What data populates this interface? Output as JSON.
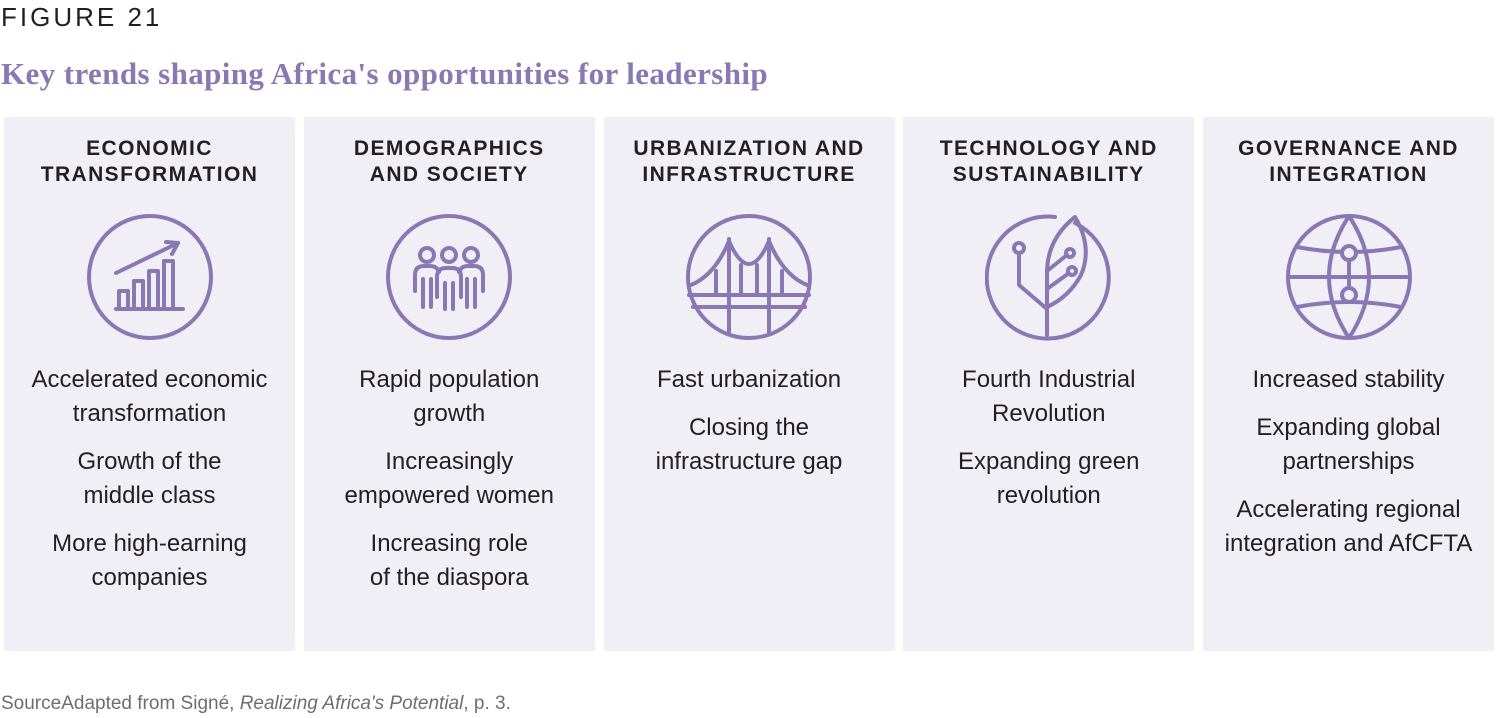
{
  "figure_label": "FIGURE 21",
  "title": "Key trends shaping Africa's opportunities for leadership",
  "accent_color": "#8a78b4",
  "panel_color": "#f0eff5",
  "columns": [
    {
      "heading": [
        "ECONOMIC",
        "TRANSFORMATION"
      ],
      "icon": "growth-chart-icon",
      "items": [
        [
          "Accelerated economic",
          "transformation"
        ],
        [
          "Growth of the",
          "middle class"
        ],
        [
          "More high-earning",
          "companies"
        ]
      ]
    },
    {
      "heading": [
        "DEMOGRAPHICS",
        "AND SOCIETY"
      ],
      "icon": "people-group-icon",
      "items": [
        [
          "Rapid population",
          "growth"
        ],
        [
          "Increasingly",
          "empowered women"
        ],
        [
          "Increasing role",
          "of the diaspora"
        ]
      ]
    },
    {
      "heading": [
        "URBANIZATION AND",
        "INFRASTRUCTURE"
      ],
      "icon": "bridge-icon",
      "items": [
        [
          "Fast urbanization"
        ],
        [
          "Closing the",
          "infrastructure gap"
        ]
      ]
    },
    {
      "heading": [
        "TECHNOLOGY AND",
        "SUSTAINABILITY"
      ],
      "icon": "circuit-leaf-icon",
      "items": [
        [
          "Fourth Industrial",
          "Revolution"
        ],
        [
          "Expanding green",
          "revolution"
        ]
      ]
    },
    {
      "heading": [
        "GOVERNANCE AND",
        "INTEGRATION"
      ],
      "icon": "network-globe-icon",
      "items": [
        [
          "Increased stability"
        ],
        [
          "Expanding global",
          "partnerships"
        ],
        [
          "Accelerating regional",
          "integration and AfCFTA"
        ]
      ]
    }
  ],
  "source": {
    "label": "Source",
    "text_before": "Adapted from Signé, ",
    "title_italic": "Realizing Africa's Potential",
    "text_after": ", p. 3."
  }
}
